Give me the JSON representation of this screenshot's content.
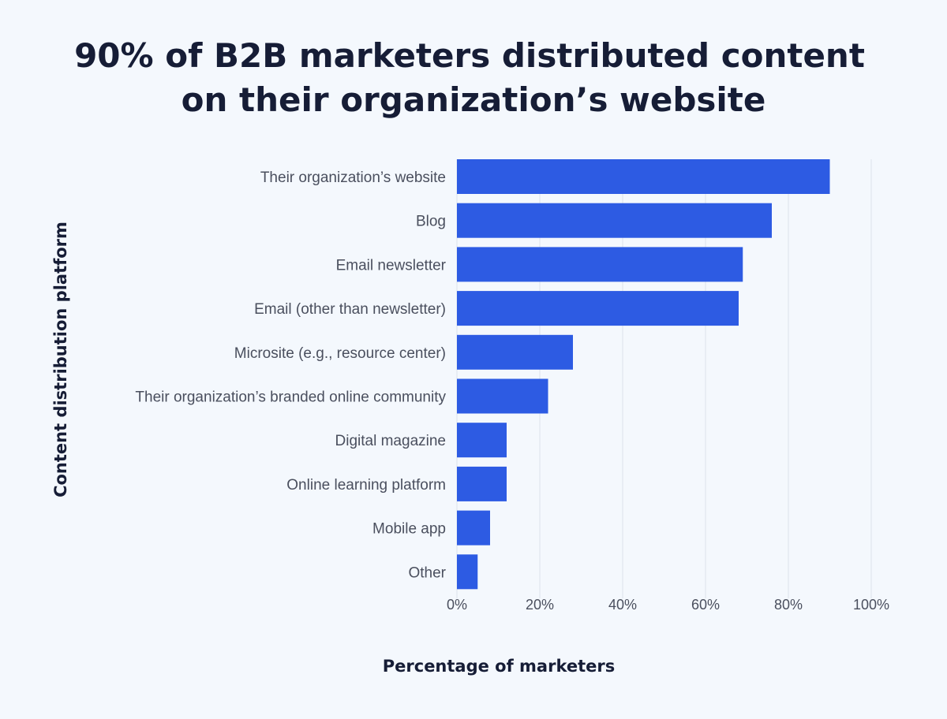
{
  "chart_data": {
    "type": "bar",
    "orientation": "horizontal",
    "title": "90% of B2B marketers distributed content on their organization’s website",
    "title_lines": [
      "90% of B2B marketers distributed content",
      "on their organization’s website"
    ],
    "xlabel": "Percentage of marketers",
    "ylabel": "Content distribution platform",
    "categories": [
      "Their organization’s website",
      "Blog",
      "Email newsletter",
      "Email (other than newsletter)",
      "Microsite (e.g., resource center)",
      "Their organization’s branded online community",
      "Digital magazine",
      "Online learning platform",
      "Mobile app",
      "Other"
    ],
    "values": [
      90,
      76,
      69,
      68,
      28,
      22,
      12,
      12,
      8,
      5
    ],
    "xlim": [
      0,
      100
    ],
    "xticks": [
      0,
      20,
      40,
      60,
      80,
      100
    ],
    "xtick_labels": [
      "0%",
      "20%",
      "40%",
      "60%",
      "80%",
      "100%"
    ],
    "grid": "vertical",
    "legend": "none",
    "bar_color": "#2d5be3"
  }
}
